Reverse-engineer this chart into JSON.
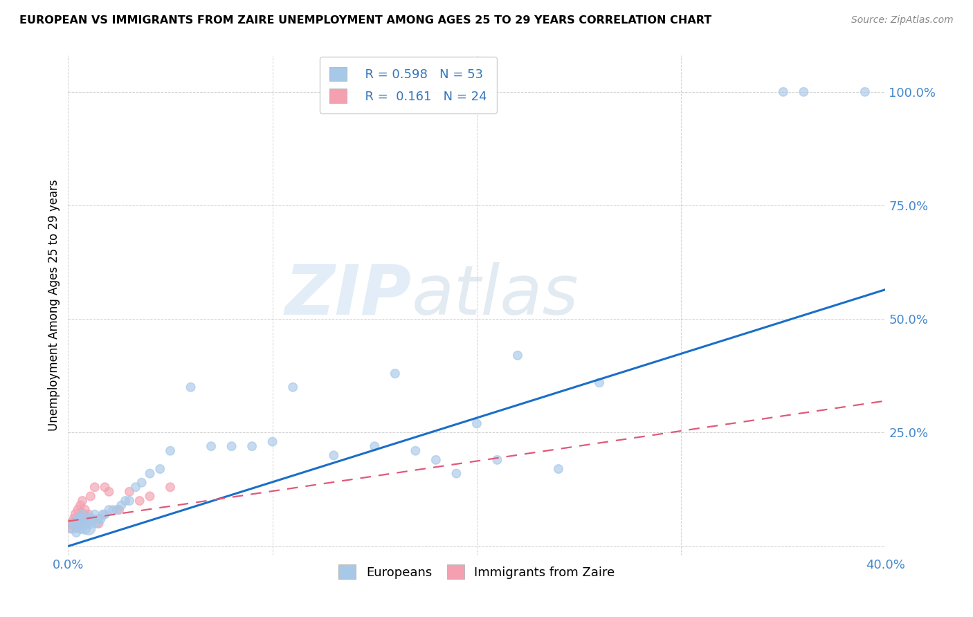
{
  "title": "EUROPEAN VS IMMIGRANTS FROM ZAIRE UNEMPLOYMENT AMONG AGES 25 TO 29 YEARS CORRELATION CHART",
  "source": "Source: ZipAtlas.com",
  "ylabel": "Unemployment Among Ages 25 to 29 years",
  "xlim": [
    0.0,
    0.4
  ],
  "ylim": [
    -0.02,
    1.08
  ],
  "x_ticks": [
    0.0,
    0.1,
    0.2,
    0.3,
    0.4
  ],
  "x_tick_labels": [
    "0.0%",
    "",
    "",
    "",
    "40.0%"
  ],
  "y_ticks": [
    0.0,
    0.25,
    0.5,
    0.75,
    1.0
  ],
  "y_tick_labels": [
    "",
    "25.0%",
    "50.0%",
    "75.0%",
    "100.0%"
  ],
  "legend_r1": "R = 0.598",
  "legend_n1": "N = 53",
  "legend_r2": "R =  0.161",
  "legend_n2": "N = 24",
  "blue_color": "#A8C8E8",
  "pink_color": "#F4A0B0",
  "trendline_blue": "#1A6EC8",
  "trendline_pink": "#E05878",
  "watermark_zip": "ZIP",
  "watermark_atlas": "atlas",
  "blue_scatter_x": [
    0.002,
    0.003,
    0.004,
    0.005,
    0.005,
    0.006,
    0.006,
    0.007,
    0.007,
    0.008,
    0.008,
    0.009,
    0.01,
    0.01,
    0.011,
    0.012,
    0.013,
    0.014,
    0.015,
    0.016,
    0.017,
    0.018,
    0.02,
    0.022,
    0.024,
    0.026,
    0.028,
    0.03,
    0.033,
    0.036,
    0.04,
    0.045,
    0.05,
    0.06,
    0.07,
    0.08,
    0.09,
    0.1,
    0.11,
    0.13,
    0.15,
    0.16,
    0.17,
    0.18,
    0.19,
    0.2,
    0.21,
    0.22,
    0.24,
    0.26,
    0.35,
    0.36,
    0.39
  ],
  "blue_scatter_y": [
    0.04,
    0.05,
    0.03,
    0.05,
    0.06,
    0.04,
    0.06,
    0.05,
    0.07,
    0.04,
    0.06,
    0.05,
    0.04,
    0.06,
    0.05,
    0.06,
    0.07,
    0.05,
    0.06,
    0.06,
    0.07,
    0.07,
    0.08,
    0.08,
    0.08,
    0.09,
    0.1,
    0.1,
    0.13,
    0.14,
    0.16,
    0.17,
    0.21,
    0.35,
    0.22,
    0.22,
    0.22,
    0.23,
    0.35,
    0.2,
    0.22,
    0.38,
    0.21,
    0.19,
    0.16,
    0.27,
    0.19,
    0.42,
    0.17,
    0.36,
    1.0,
    1.0,
    1.0
  ],
  "blue_scatter_sizes": [
    120,
    100,
    80,
    150,
    100,
    120,
    80,
    100,
    80,
    150,
    100,
    120,
    200,
    150,
    100,
    80,
    80,
    80,
    80,
    80,
    80,
    80,
    80,
    80,
    80,
    80,
    80,
    80,
    80,
    80,
    80,
    80,
    80,
    80,
    80,
    80,
    80,
    80,
    80,
    80,
    80,
    80,
    80,
    80,
    80,
    80,
    80,
    80,
    80,
    80,
    80,
    80,
    80
  ],
  "pink_scatter_x": [
    0.001,
    0.002,
    0.003,
    0.004,
    0.004,
    0.005,
    0.005,
    0.006,
    0.006,
    0.007,
    0.007,
    0.008,
    0.009,
    0.01,
    0.011,
    0.013,
    0.015,
    0.018,
    0.02,
    0.025,
    0.03,
    0.035,
    0.04,
    0.05
  ],
  "pink_scatter_y": [
    0.04,
    0.05,
    0.06,
    0.04,
    0.07,
    0.05,
    0.08,
    0.06,
    0.09,
    0.07,
    0.1,
    0.08,
    0.06,
    0.07,
    0.11,
    0.13,
    0.05,
    0.13,
    0.12,
    0.08,
    0.12,
    0.1,
    0.11,
    0.13
  ],
  "pink_scatter_sizes": [
    80,
    120,
    100,
    80,
    120,
    150,
    100,
    130,
    80,
    120,
    80,
    100,
    80,
    80,
    80,
    80,
    80,
    80,
    80,
    80,
    80,
    80,
    80,
    80
  ],
  "trendline_blue_x0": 0.0,
  "trendline_blue_y0": 0.0,
  "trendline_blue_x1": 0.4,
  "trendline_blue_y1": 0.565,
  "trendline_pink_x0": 0.0,
  "trendline_pink_y0": 0.055,
  "trendline_pink_x1": 0.4,
  "trendline_pink_y1": 0.32
}
